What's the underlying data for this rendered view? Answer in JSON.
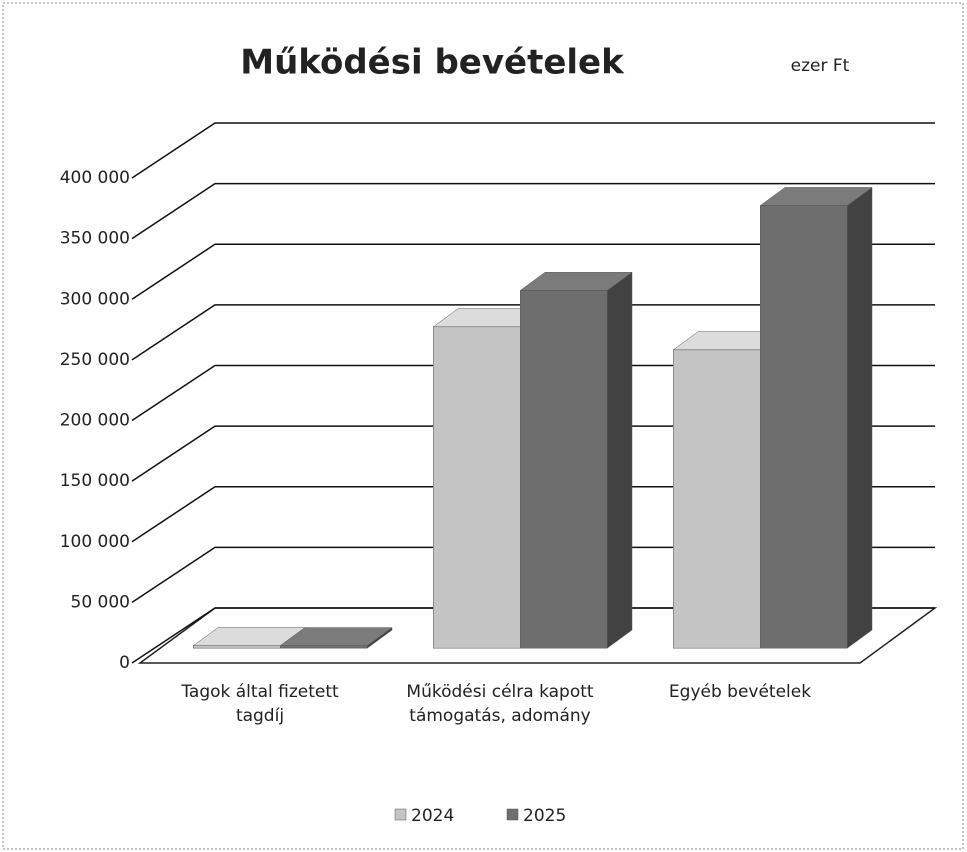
{
  "chart_data": {
    "type": "bar3d",
    "title": "Működési bevételek",
    "subtitle": "ezer Ft",
    "categories": [
      "Tagok által fizetett tagdíj",
      "Működési célra kapott támogatás, adomány",
      "Egyéb bevételek"
    ],
    "series": [
      {
        "name": "2024",
        "color": "#c4c4c4",
        "values": [
          2000,
          265000,
          246000
        ]
      },
      {
        "name": "2025",
        "color": "#6e6e6e",
        "values": [
          2000,
          295000,
          365000
        ]
      }
    ],
    "ylim": [
      0,
      400000
    ],
    "yticks": [
      0,
      {
        "value": 50000,
        "label": "50 000"
      },
      {
        "value": 100000,
        "label": "100 000"
      },
      {
        "value": 150000,
        "label": "150 000"
      },
      {
        "value": 200000,
        "label": "200 000"
      },
      {
        "value": 250000,
        "label": "250 000"
      },
      {
        "value": 300000,
        "label": "300 000"
      },
      {
        "value": 350000,
        "label": "350 000"
      },
      {
        "value": 400000,
        "label": "400 000"
      }
    ],
    "grid": true,
    "legend": "bottom"
  }
}
